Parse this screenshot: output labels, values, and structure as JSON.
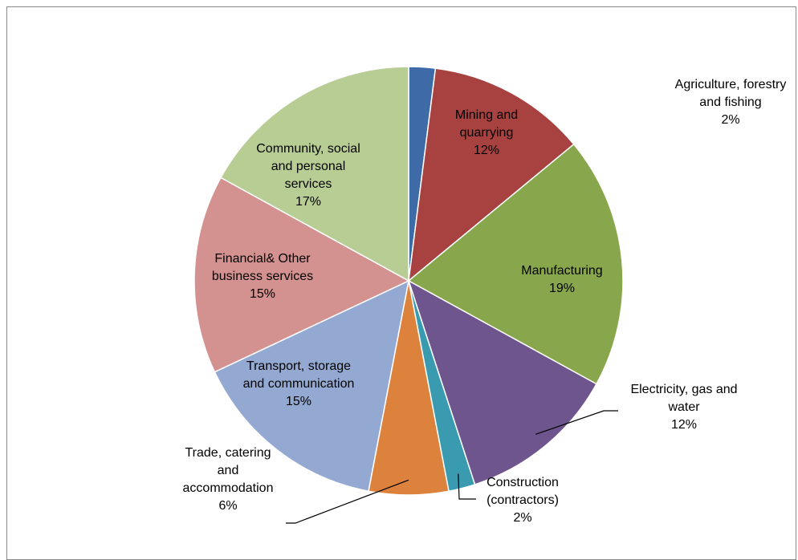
{
  "chart_data": {
    "type": "pie",
    "title": "",
    "slices": [
      {
        "name": "Agriculture, forestry and fishing",
        "label_lines": [
          "Agriculture, forestry",
          "and fishing"
        ],
        "value": 2,
        "value_label": "2%",
        "color": "#3e6aa7"
      },
      {
        "name": "Mining and quarrying",
        "label_lines": [
          "Mining and",
          "quarrying"
        ],
        "value": 12,
        "value_label": "12%",
        "color": "#a84240"
      },
      {
        "name": "Manufacturing",
        "label_lines": [
          "Manufacturing"
        ],
        "value": 19,
        "value_label": "19%",
        "color": "#88a64b"
      },
      {
        "name": "Electricity, gas and water",
        "label_lines": [
          "Electricity, gas and",
          "water"
        ],
        "value": 12,
        "value_label": "12%",
        "color": "#6f558e"
      },
      {
        "name": "Construction (contractors)",
        "label_lines": [
          "Construction",
          "(contractors)"
        ],
        "value": 2,
        "value_label": "2%",
        "color": "#3a9bb0"
      },
      {
        "name": "Trade, catering and accommodation",
        "label_lines": [
          "Trade, catering",
          "and",
          "accommodation"
        ],
        "value": 6,
        "value_label": "6%",
        "color": "#dc823d"
      },
      {
        "name": "Transport, storage and communication",
        "label_lines": [
          "Transport, storage",
          "and communication"
        ],
        "value": 15,
        "value_label": "15%",
        "color": "#94a9d1"
      },
      {
        "name": "Financial& Other business services",
        "label_lines": [
          "Financial& Other",
          "business services"
        ],
        "value": 15,
        "value_label": "15%",
        "color": "#d3918f"
      },
      {
        "name": "Community, social and personal services",
        "label_lines": [
          "Community, social",
          "and personal",
          "services"
        ],
        "value": 17,
        "value_label": "17%",
        "color": "#b8cd93"
      }
    ],
    "legend": "none",
    "start_angle": "top, clockwise"
  }
}
